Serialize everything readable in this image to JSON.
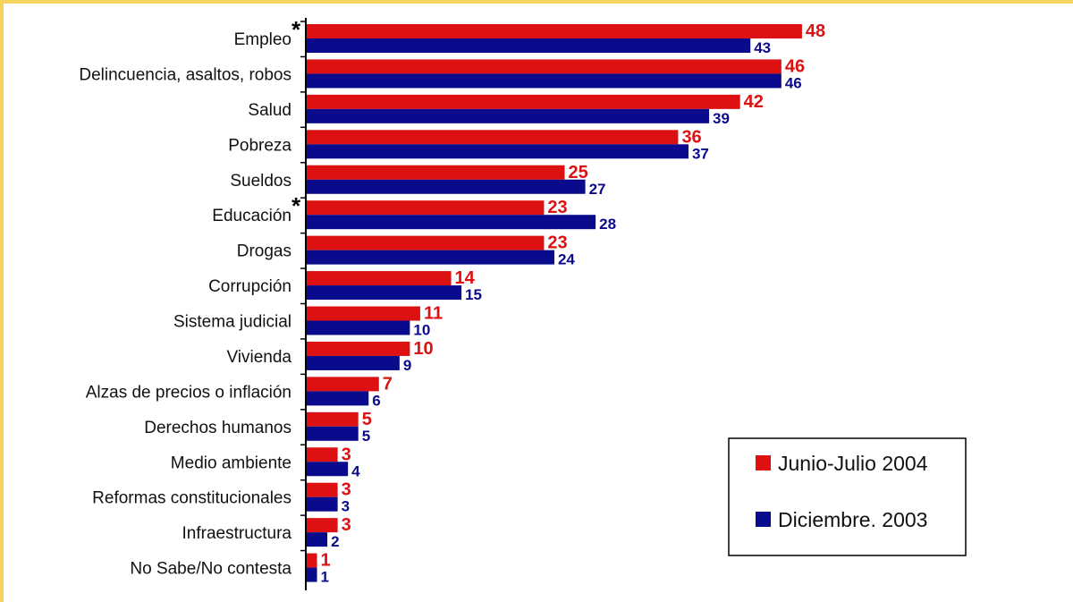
{
  "chart_data": {
    "type": "bar",
    "orientation": "horizontal",
    "categories": [
      "Empleo",
      "Delincuencia, asaltos, robos",
      "Salud",
      "Pobreza",
      "Sueldos",
      "Educación",
      "Drogas",
      "Corrupción",
      "Sistema judicial",
      "Vivienda",
      "Alzas de precios o inflación",
      "Derechos humanos",
      "Medio ambiente",
      "Reformas constitucionales",
      "Infraestructura",
      "No Sabe/No contesta"
    ],
    "category_marks": [
      "*",
      "",
      "",
      "",
      "",
      "*",
      "",
      "",
      "",
      "",
      "",
      "",
      "",
      "",
      "",
      ""
    ],
    "series": [
      {
        "name": "Junio-Julio 2004",
        "color": "#dd1111",
        "values": [
          48,
          46,
          42,
          36,
          25,
          23,
          23,
          14,
          11,
          10,
          7,
          5,
          3,
          3,
          3,
          1
        ]
      },
      {
        "name": "Diciembre. 2003",
        "color": "#0a0a8c",
        "values": [
          43,
          46,
          39,
          37,
          27,
          28,
          24,
          15,
          10,
          9,
          6,
          5,
          4,
          3,
          2,
          1
        ]
      }
    ],
    "xlim": [
      0,
      50
    ],
    "grid": false,
    "legend_position": "bottom-right",
    "title": "",
    "xlabel": "",
    "ylabel": ""
  }
}
